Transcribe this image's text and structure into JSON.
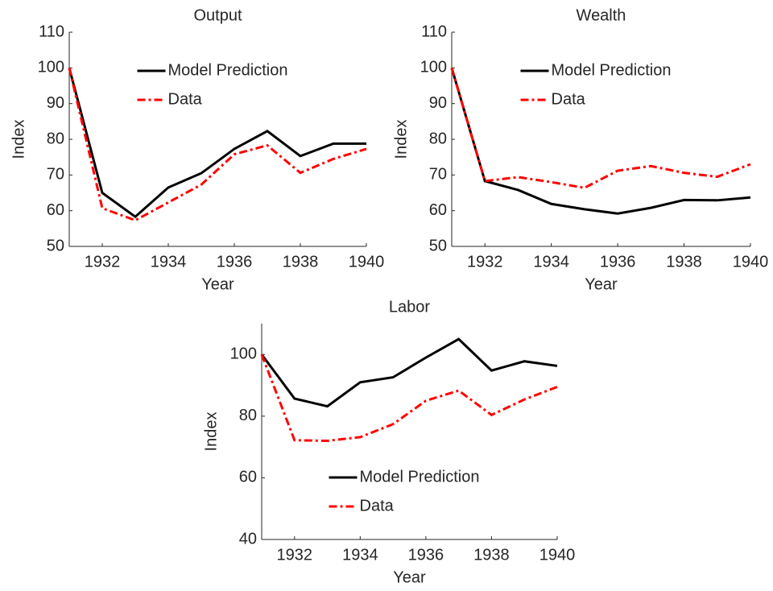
{
  "chart_data": [
    {
      "type": "line",
      "title": "Output",
      "xlabel": "Year",
      "ylabel": "Index",
      "x": [
        1931,
        1932,
        1933,
        1934,
        1935,
        1936,
        1937,
        1938,
        1939,
        1940
      ],
      "xlim": [
        1931,
        1940
      ],
      "xticks": [
        1932,
        1934,
        1936,
        1938,
        1940
      ],
      "ylim": [
        50,
        110
      ],
      "yticks": [
        50,
        60,
        70,
        80,
        90,
        100,
        110
      ],
      "legend": "north",
      "series": [
        {
          "name": "Model Prediction",
          "color": "#000000",
          "linestyle": "solid",
          "values": [
            100,
            65,
            58.3,
            66.5,
            70.5,
            77.3,
            82.3,
            75.3,
            78.8,
            78.8
          ]
        },
        {
          "name": "Data",
          "color": "#ff0000",
          "linestyle": "dashdot",
          "values": [
            100,
            60.7,
            57.3,
            62.3,
            67.3,
            75.8,
            78.3,
            70.6,
            74.5,
            77.3
          ]
        }
      ]
    },
    {
      "type": "line",
      "title": "Wealth",
      "xlabel": "Year",
      "ylabel": "Index",
      "x": [
        1931,
        1932,
        1933,
        1934,
        1935,
        1936,
        1937,
        1938,
        1939,
        1940
      ],
      "xlim": [
        1931,
        1940
      ],
      "xticks": [
        1932,
        1934,
        1936,
        1938,
        1940
      ],
      "ylim": [
        50,
        110
      ],
      "yticks": [
        50,
        60,
        70,
        80,
        90,
        100,
        110
      ],
      "legend": "north",
      "series": [
        {
          "name": "Model Prediction",
          "color": "#000000",
          "linestyle": "solid",
          "values": [
            100,
            68.3,
            65.8,
            61.9,
            60.4,
            59.2,
            60.8,
            63,
            62.9,
            63.7
          ]
        },
        {
          "name": "Data",
          "color": "#ff0000",
          "linestyle": "dashdot",
          "values": [
            100,
            68.3,
            69.4,
            68,
            66.4,
            71.2,
            72.5,
            70.6,
            69.5,
            73
          ]
        }
      ]
    },
    {
      "type": "line",
      "title": "Labor",
      "xlabel": "Year",
      "ylabel": "Index",
      "x": [
        1931,
        1932,
        1933,
        1934,
        1935,
        1936,
        1937,
        1938,
        1939,
        1940
      ],
      "xlim": [
        1931,
        1940
      ],
      "xticks": [
        1932,
        1934,
        1936,
        1938,
        1940
      ],
      "ylim": [
        40,
        110
      ],
      "yticks": [
        40,
        60,
        80,
        100
      ],
      "legend": "south",
      "series": [
        {
          "name": "Model Prediction",
          "color": "#000000",
          "linestyle": "solid",
          "values": [
            100,
            85.7,
            83.2,
            91,
            92.6,
            99,
            105,
            94.8,
            97.8,
            96.3
          ]
        },
        {
          "name": "Data",
          "color": "#ff0000",
          "linestyle": "dashdot",
          "values": [
            100,
            72.2,
            72,
            73.2,
            77.4,
            85,
            88.3,
            80.4,
            85.4,
            89.5
          ]
        }
      ]
    }
  ]
}
